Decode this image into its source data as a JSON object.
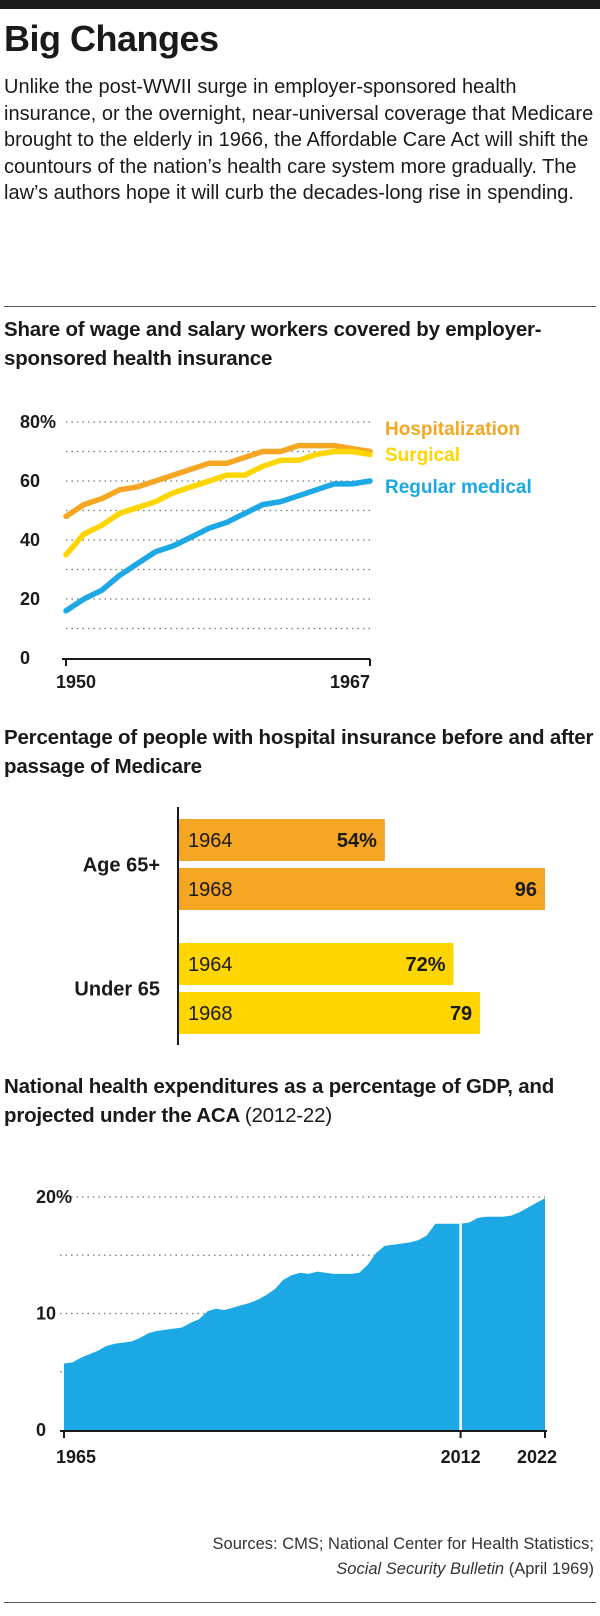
{
  "headline": "Big Changes",
  "intro": "Unlike the post-WWII surge in employer-sponsored health insurance, or the overnight, near-universal coverage that Medicare brought to the elderly in 1966, the Affordable Care Act will shift the countours of the nation’s health care system more gradually. The law’s authors hope it will curb the decades-long rise in spending.",
  "chart1_title": "Share of wage and salary workers covered by employer-sponsored health insurance",
  "chart2_title": "Percentage of people with hospital insurance before and after passage of Medicare",
  "chart3_title": "National health expenditures as a percentage of GDP, and projected under the ACA",
  "chart3_title_paren": "(2012-22)",
  "sources_line1": "Sources: CMS; National Center for Health Statistics;",
  "sources_italic": "Social Security Bulletin",
  "sources_tail": "(April 1969)",
  "chart_data": [
    {
      "type": "line",
      "x": [
        1950,
        1951,
        1952,
        1953,
        1954,
        1955,
        1956,
        1957,
        1958,
        1959,
        1960,
        1961,
        1962,
        1963,
        1964,
        1965,
        1966,
        1967
      ],
      "x_tick_labels": [
        "1950",
        "1967"
      ],
      "y_tick_labels": [
        "80%",
        "60",
        "40",
        "20",
        "0"
      ],
      "ylim": [
        0,
        80
      ],
      "grid": true,
      "legend_position": "right",
      "series": [
        {
          "name": "Hospitalization",
          "color": "#F5A623",
          "values": [
            48,
            52,
            54,
            57,
            58,
            60,
            62,
            64,
            66,
            66,
            68,
            70,
            70,
            72,
            72,
            72,
            71,
            70
          ]
        },
        {
          "name": "Surgical",
          "color": "#FFD500",
          "values": [
            35,
            42,
            45,
            49,
            51,
            53,
            56,
            58,
            60,
            62,
            62,
            65,
            67,
            67,
            69,
            70,
            70,
            69
          ]
        },
        {
          "name": "Regular medical",
          "color": "#1BA8E5",
          "values": [
            16,
            20,
            23,
            28,
            32,
            36,
            38,
            41,
            44,
            46,
            49,
            52,
            53,
            55,
            57,
            59,
            59,
            60
          ]
        }
      ]
    },
    {
      "type": "bar",
      "orientation": "horizontal",
      "groups": [
        {
          "name": "Age 65+",
          "color": "#F5A623",
          "bars": [
            {
              "year": "1964",
              "value": 54,
              "label": "54%"
            },
            {
              "year": "1968",
              "value": 96,
              "label": "96"
            }
          ]
        },
        {
          "name": "Under 65",
          "color": "#FFD500",
          "bars": [
            {
              "year": "1964",
              "value": 72,
              "label": "72%"
            },
            {
              "year": "1968",
              "value": 79,
              "label": "79"
            }
          ]
        }
      ]
    },
    {
      "type": "area",
      "color": "#1BA8E5",
      "x_tick_labels": [
        "1965",
        "2012",
        "2022"
      ],
      "y_tick_labels": [
        "20%",
        "10",
        "0"
      ],
      "ylim": [
        0,
        20
      ],
      "grid": true,
      "projection_start": 2012,
      "x": [
        1965,
        1966,
        1967,
        1968,
        1969,
        1970,
        1971,
        1972,
        1973,
        1974,
        1975,
        1976,
        1977,
        1978,
        1979,
        1980,
        1981,
        1982,
        1983,
        1984,
        1985,
        1986,
        1987,
        1988,
        1989,
        1990,
        1991,
        1992,
        1993,
        1994,
        1995,
        1996,
        1997,
        1998,
        1999,
        2000,
        2001,
        2002,
        2003,
        2004,
        2005,
        2006,
        2007,
        2008,
        2009,
        2010,
        2011,
        2012,
        2013,
        2014,
        2015,
        2016,
        2017,
        2018,
        2019,
        2020,
        2021,
        2022
      ],
      "values": [
        5.7,
        5.8,
        6.2,
        6.5,
        6.8,
        7.2,
        7.4,
        7.5,
        7.6,
        7.9,
        8.3,
        8.5,
        8.6,
        8.7,
        8.8,
        9.2,
        9.5,
        10.2,
        10.4,
        10.3,
        10.5,
        10.7,
        10.9,
        11.2,
        11.6,
        12.1,
        12.9,
        13.3,
        13.5,
        13.4,
        13.6,
        13.5,
        13.4,
        13.4,
        13.4,
        13.5,
        14.2,
        15.2,
        15.8,
        15.9,
        16.0,
        16.1,
        16.3,
        16.7,
        17.7,
        17.7,
        17.7,
        17.7,
        17.8,
        18.2,
        18.3,
        18.3,
        18.3,
        18.4,
        18.7,
        19.1,
        19.5,
        19.9
      ]
    }
  ]
}
